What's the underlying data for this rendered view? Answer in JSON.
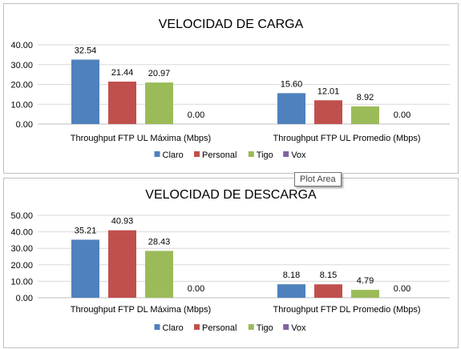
{
  "chart_data": [
    {
      "type": "bar",
      "title": "VELOCIDAD DE CARGA",
      "categories": [
        "Throughput FTP UL Máxima (Mbps)",
        "Throughput FTP UL Promedio (Mbps)"
      ],
      "series": [
        {
          "name": "Claro",
          "color": "#4f81bd",
          "values": [
            32.54,
            15.6
          ]
        },
        {
          "name": "Personal",
          "color": "#c0504d",
          "values": [
            21.44,
            12.01
          ]
        },
        {
          "name": "Tigo",
          "color": "#9bbb59",
          "values": [
            20.97,
            8.92
          ]
        },
        {
          "name": "Vox",
          "color": "#8064a2",
          "values": [
            0.0,
            0.0
          ]
        }
      ],
      "ylim": [
        0,
        40
      ],
      "yticks": [
        0,
        10,
        20,
        30,
        40
      ],
      "tick_labels": [
        "0.00",
        "10.00",
        "20.00",
        "30.00",
        "40.00"
      ],
      "data_labels": [
        [
          "32.54",
          "15.60"
        ],
        [
          "21.44",
          "12.01"
        ],
        [
          "20.97",
          "8.92"
        ],
        [
          "0.00",
          "0.00"
        ]
      ],
      "grid": true,
      "legend": "bottom"
    },
    {
      "type": "bar",
      "title": "VELOCIDAD DE DESCARGA",
      "categories": [
        "Throughput FTP DL Máxima (Mbps)",
        "Throughput FTP DL Promedio (Mbps)"
      ],
      "series": [
        {
          "name": "Claro",
          "color": "#4f81bd",
          "values": [
            35.21,
            8.18
          ]
        },
        {
          "name": "Personal",
          "color": "#c0504d",
          "values": [
            40.93,
            8.15
          ]
        },
        {
          "name": "Tigo",
          "color": "#9bbb59",
          "values": [
            28.43,
            4.79
          ]
        },
        {
          "name": "Vox",
          "color": "#8064a2",
          "values": [
            0.0,
            0.0
          ]
        }
      ],
      "ylim": [
        0,
        50
      ],
      "yticks": [
        0,
        10,
        20,
        30,
        40,
        50
      ],
      "tick_labels": [
        "0.00",
        "10.00",
        "20.00",
        "30.00",
        "40.00",
        "50.00"
      ],
      "data_labels": [
        [
          "35.21",
          "8.18"
        ],
        [
          "40.93",
          "8.15"
        ],
        [
          "28.43",
          "4.79"
        ],
        [
          "0.00",
          "0.00"
        ]
      ],
      "grid": true,
      "legend": "bottom"
    }
  ],
  "tooltip": {
    "text": "Plot Area"
  }
}
